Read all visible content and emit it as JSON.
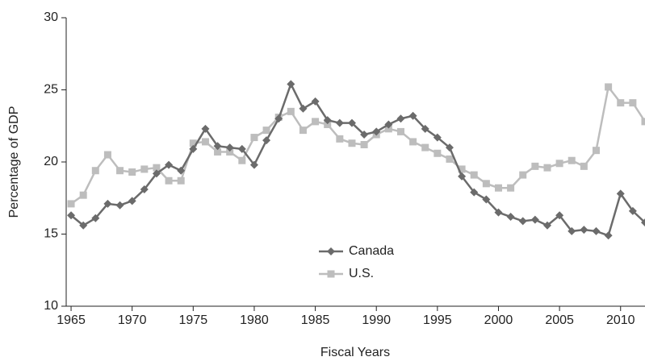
{
  "chart_data": {
    "type": "line",
    "x_label": "Fiscal Years",
    "y_label": "Percentage of GDP",
    "x": [
      1965,
      1966,
      1967,
      1968,
      1969,
      1970,
      1971,
      1972,
      1973,
      1974,
      1975,
      1976,
      1977,
      1978,
      1979,
      1980,
      1981,
      1982,
      1983,
      1984,
      1985,
      1986,
      1987,
      1988,
      1989,
      1990,
      1991,
      1992,
      1993,
      1994,
      1995,
      1996,
      1997,
      1998,
      1999,
      2000,
      2001,
      2002,
      2003,
      2004,
      2005,
      2006,
      2007,
      2008,
      2009,
      2010,
      2011,
      2012
    ],
    "series": [
      {
        "name": "Canada",
        "color": "#6b6b6b",
        "marker": "diamond",
        "values": [
          16.3,
          15.6,
          16.1,
          17.1,
          17.0,
          17.3,
          18.1,
          19.2,
          19.8,
          19.4,
          20.9,
          22.3,
          21.1,
          21.0,
          20.9,
          19.8,
          21.5,
          23.0,
          25.4,
          23.7,
          24.2,
          22.9,
          22.7,
          22.7,
          21.9,
          22.1,
          22.6,
          23.0,
          23.2,
          22.3,
          21.7,
          21.0,
          19.0,
          17.9,
          17.4,
          16.5,
          16.2,
          15.9,
          16.0,
          15.6,
          16.3,
          15.2,
          15.3,
          15.2,
          14.9,
          17.8,
          16.6,
          15.8
        ]
      },
      {
        "name": "U.S.",
        "color": "#bdbdbd",
        "marker": "square",
        "values": [
          17.1,
          17.7,
          19.4,
          20.5,
          19.4,
          19.3,
          19.5,
          19.6,
          18.7,
          18.7,
          21.3,
          21.4,
          20.7,
          20.7,
          20.1,
          21.7,
          22.2,
          23.1,
          23.5,
          22.2,
          22.8,
          22.6,
          21.6,
          21.3,
          21.2,
          21.9,
          22.3,
          22.1,
          21.4,
          21.0,
          20.6,
          20.2,
          19.5,
          19.1,
          18.5,
          18.2,
          18.2,
          19.1,
          19.7,
          19.6,
          19.9,
          20.1,
          19.7,
          20.8,
          25.2,
          24.1,
          24.1,
          22.8
        ]
      }
    ],
    "xlim": [
      1964.6,
      2012
    ],
    "xticks": [
      1965,
      1970,
      1975,
      1980,
      1985,
      1990,
      1995,
      2000,
      2005,
      2010
    ],
    "ylim": [
      10,
      30
    ],
    "yticks": [
      10,
      15,
      20,
      25,
      30
    ],
    "grid": false
  }
}
